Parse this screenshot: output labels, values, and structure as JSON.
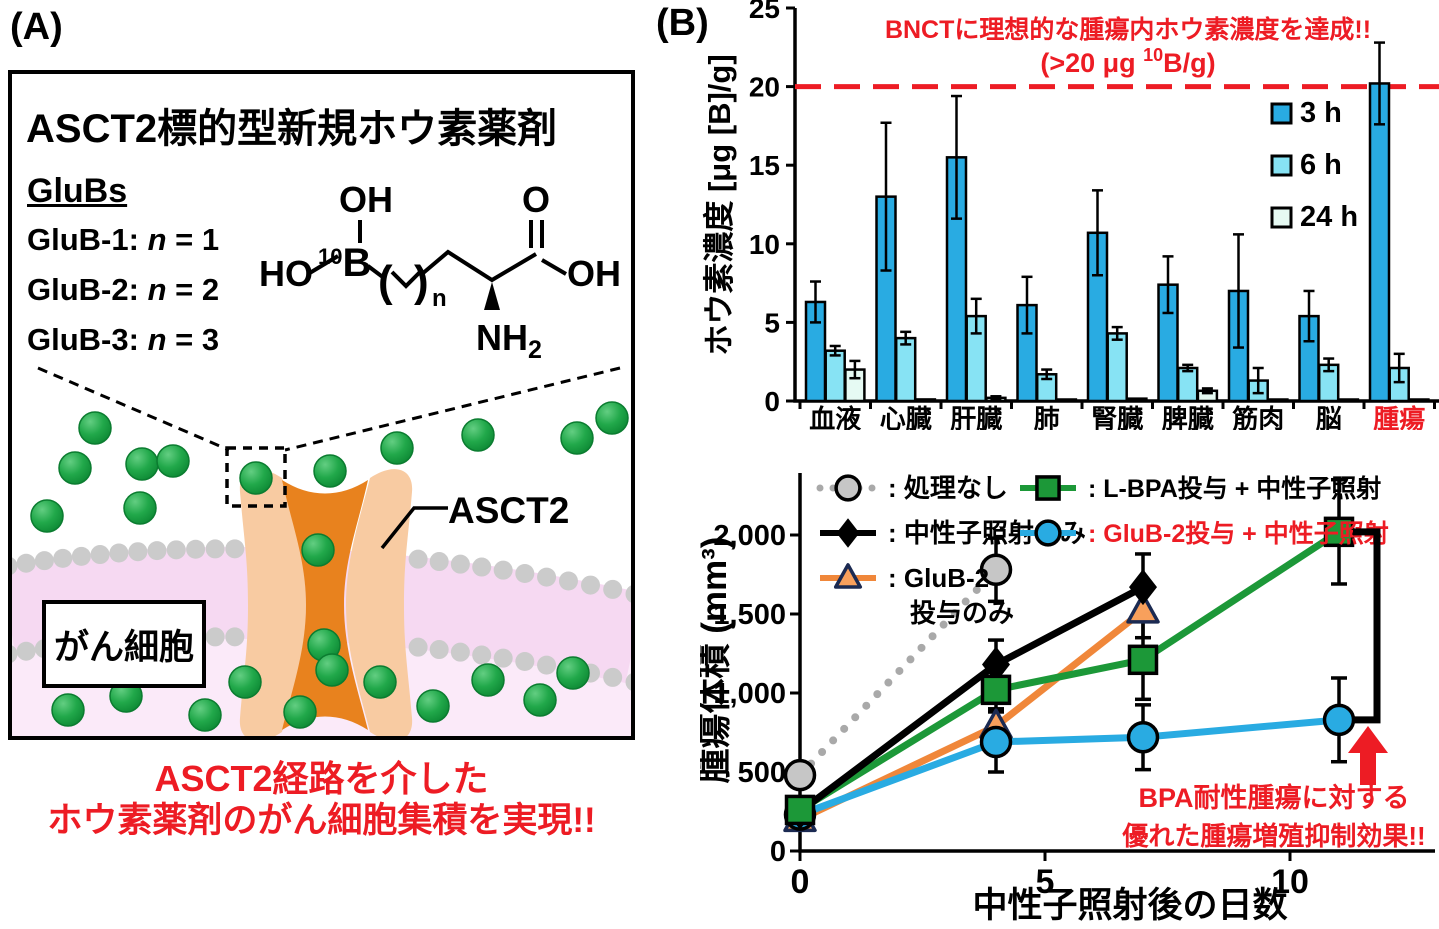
{
  "accent_red": "#ED1C24",
  "panel_a": {
    "label": "(A)",
    "title": "ASCT2標的型新規ホウ素薬剤",
    "family_label": "GluBs",
    "variants": [
      {
        "name": "GluB-1: ",
        "var": "n",
        "rest": " = 1"
      },
      {
        "name": "GluB-2: ",
        "var": "n",
        "rest": " = 2"
      },
      {
        "name": "GluB-3: ",
        "var": "n",
        "rest": " = 3"
      }
    ],
    "structure": {
      "oh_top": "OH",
      "isotope": "10",
      "boron": "B",
      "ho_left": "HO",
      "paren_open": "(",
      "paren_close": ")",
      "n_sub": "n",
      "o_top": "O",
      "oh_right": "OH",
      "amine": "NH",
      "amine_sub": "2"
    },
    "cell_label": "がん細胞",
    "transporter_label": "ASCT2",
    "caption_line1": "ASCT2経路を介した",
    "caption_line2": "ホウ素薬剤のがん細胞集積を実現!!",
    "colors": {
      "drug_dot": "#21A84A",
      "membrane_band": "#F6D9F2",
      "cell_interior": "#FBEAF9",
      "lipid_head": "#CBCBCB",
      "channel_inner": "#E8821E",
      "channel_outer": "#F8CBA2"
    }
  },
  "panel_b": {
    "label": "(B)"
  },
  "chart_data": [
    {
      "type": "bar",
      "title": "BNCTに理想的な腫瘍内ホウ素濃度を達成!!",
      "subtitle_pre": "(>20 μg ",
      "subtitle_sup": "10",
      "subtitle_post": "B/g)",
      "ylabel": "ホウ素濃度 [μg [B]/g]",
      "ylim": [
        0,
        25
      ],
      "yticks": [
        0,
        5,
        10,
        15,
        20,
        25
      ],
      "ytick_labels": [
        "0",
        "5",
        "10",
        "15",
        "20",
        "25"
      ],
      "grid": false,
      "legend_position": "inside-top-right",
      "reference_line": {
        "value": 20,
        "color": "#ED1C24",
        "style": "dashed"
      },
      "categories": [
        "血液",
        "心臓",
        "肝臓",
        "肺",
        "腎臓",
        "脾臓",
        "筋肉",
        "脳",
        "腫瘍"
      ],
      "highlight_category": "腫瘍",
      "highlight_color": "#ED1C24",
      "series": [
        {
          "name": "3 h",
          "color": "#29ABE2",
          "values": [
            6.3,
            13.0,
            15.5,
            6.1,
            10.7,
            7.4,
            7.0,
            5.4,
            20.2
          ],
          "errors": [
            1.3,
            4.7,
            3.9,
            1.8,
            2.7,
            1.8,
            3.6,
            1.6,
            2.6
          ]
        },
        {
          "name": "6 h",
          "color": "#87E3F4",
          "values": [
            3.2,
            4.0,
            5.4,
            1.7,
            4.3,
            2.1,
            1.3,
            2.3,
            2.1
          ],
          "errors": [
            0.3,
            0.4,
            1.1,
            0.3,
            0.4,
            0.2,
            0.8,
            0.4,
            0.9
          ]
        },
        {
          "name": "24 h",
          "color": "#E6FAF3",
          "values": [
            2.0,
            0.1,
            0.2,
            0.05,
            0.15,
            0.65,
            0.05,
            0.05,
            0.05
          ],
          "errors": [
            0.55,
            0,
            0.1,
            0,
            0,
            0.15,
            0,
            0,
            0
          ]
        }
      ]
    },
    {
      "type": "line",
      "xlabel": "中性子照射後の日数",
      "ylabel": "腫瘍体積 (mm³)",
      "xlim": [
        0,
        13
      ],
      "ylim": [
        0,
        2400
      ],
      "xticks": [
        0,
        5,
        10
      ],
      "xtick_labels": [
        "0",
        "5",
        "10"
      ],
      "yticks": [
        0,
        500,
        1000,
        1500,
        2000
      ],
      "ytick_labels": [
        "0",
        "500",
        "1,000",
        "1,500",
        "2,000"
      ],
      "grid": false,
      "legend_position": "inside-top-left",
      "series": [
        {
          "name": "処理なし",
          "legend_label": ": 処理なし",
          "marker": "circle",
          "marker_fill": "#C6C6C6",
          "color": "#A9A9A9",
          "line_style": "dotted",
          "x": [
            0,
            4
          ],
          "y": [
            480,
            1780
          ],
          "errors": [
            70,
            200
          ]
        },
        {
          "name": "中性子照射のみ",
          "legend_label": ": 中性子照射のみ",
          "marker": "diamond",
          "marker_fill": "#000000",
          "color": "#000000",
          "line_style": "solid",
          "x": [
            0,
            4,
            7
          ],
          "y": [
            250,
            1180,
            1670
          ],
          "errors": [
            60,
            155,
            210
          ]
        },
        {
          "name": "GluB-2投与のみ",
          "legend_label": ": GluB-2",
          "legend_label2": "投与のみ",
          "marker": "triangle",
          "marker_fill": "#F8A05C",
          "marker_stroke": "#1B2A52",
          "color": "#F0873A",
          "line_style": "solid",
          "x": [
            0,
            4,
            7
          ],
          "y": [
            200,
            790,
            1520
          ],
          "errors": [
            50,
            100,
            170
          ]
        },
        {
          "name": "L-BPA投与 + 中性子照射",
          "legend_label": ": L-BPA投与 + 中性子照射",
          "marker": "square",
          "marker_fill": "#1C9838",
          "color": "#1C9838",
          "line_style": "solid",
          "x": [
            0,
            4,
            7,
            11
          ],
          "y": [
            260,
            1020,
            1210,
            2020
          ],
          "errors": [
            60,
            120,
            250,
            330
          ]
        },
        {
          "name": "GluB-2投与 + 中性子照射",
          "legend_label": ": GluB-2投与 + 中性子照射",
          "legend_label_color": "#ED1C24",
          "marker": "circle",
          "marker_fill": "#29ABE2",
          "color": "#29ABE2",
          "line_style": "solid",
          "x": [
            0,
            4,
            7,
            11
          ],
          "y": [
            230,
            690,
            720,
            830
          ],
          "errors": [
            55,
            190,
            205,
            265
          ]
        }
      ],
      "annotation": {
        "line1": "BPA耐性腫瘍に対する",
        "line2": "優れた腫瘍増殖抑制効果!!",
        "color": "#ED1C24"
      },
      "bracket": {
        "from_series": "L-BPA投与 + 中性子照射",
        "to_series": "GluB-2投与 + 中性子照射",
        "at_x": 11
      }
    }
  ]
}
